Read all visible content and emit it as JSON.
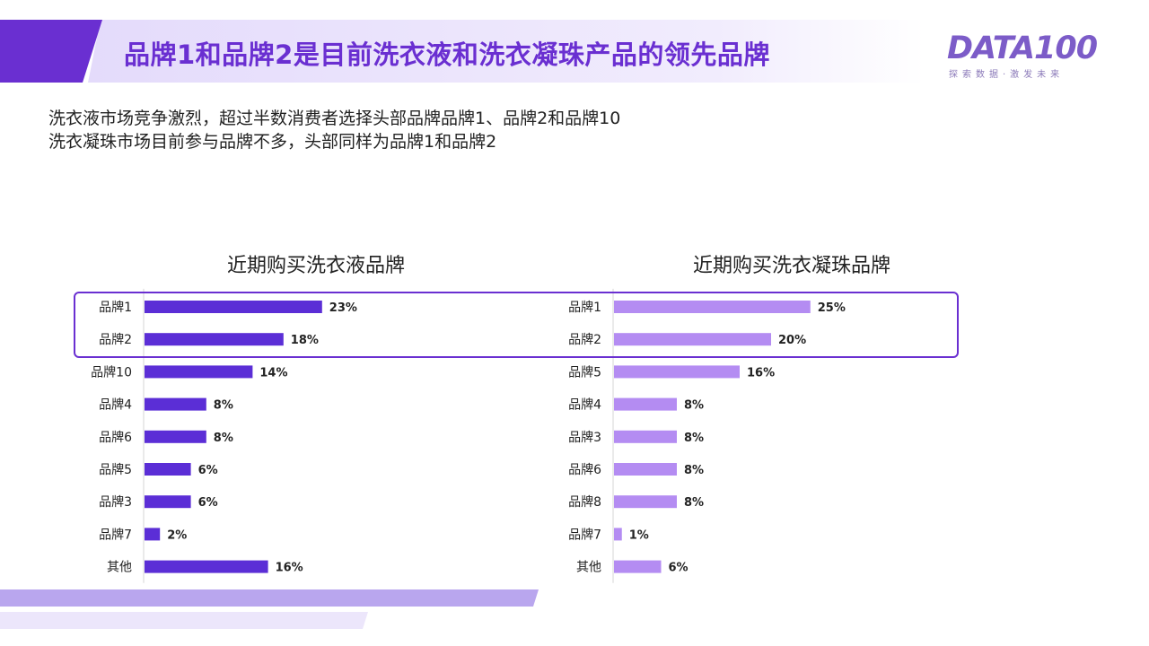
{
  "header": {
    "title": "品牌1和品牌2是目前洗衣液和洗衣凝珠产品的领先品牌",
    "logo_text": "DATA100",
    "logo_tagline": "探索数据·激发未来"
  },
  "summary": [
    "洗衣液市场竞争激烈，超过半数消费者选择头部品牌品牌1、品牌2和品牌10",
    "洗衣凝珠市场目前参与品牌不多，头部同样为品牌1和品牌2"
  ],
  "colors": {
    "accent": "#6a2fd1",
    "left_bar": "#5b2ed6",
    "right_bar": "#b48cf2",
    "highlight_border": "#6a2fd1",
    "band_light": "#ece6fb"
  },
  "chart_data": [
    {
      "type": "bar",
      "orientation": "horizontal",
      "title": "近期购买洗衣液品牌",
      "categories": [
        "品牌1",
        "品牌2",
        "品牌10",
        "品牌4",
        "品牌6",
        "品牌5",
        "品牌3",
        "品牌7",
        "其他"
      ],
      "values": [
        23,
        18,
        14,
        8,
        8,
        6,
        6,
        2,
        16
      ],
      "labels": [
        "23%",
        "18%",
        "14%",
        "8%",
        "8%",
        "6%",
        "6%",
        "2%",
        "16%"
      ],
      "unit": "%",
      "highlighted": [
        "品牌1",
        "品牌2"
      ]
    },
    {
      "type": "bar",
      "orientation": "horizontal",
      "title": "近期购买洗衣凝珠品牌",
      "categories": [
        "品牌1",
        "品牌2",
        "品牌5",
        "品牌4",
        "品牌3",
        "品牌6",
        "品牌8",
        "品牌7",
        "其他"
      ],
      "values": [
        25,
        20,
        16,
        8,
        8,
        8,
        8,
        1,
        6
      ],
      "labels": [
        "25%",
        "20%",
        "16%",
        "8%",
        "8%",
        "8%",
        "8%",
        "1%",
        "6%"
      ],
      "unit": "%",
      "highlighted": [
        "品牌1",
        "品牌2"
      ]
    }
  ]
}
